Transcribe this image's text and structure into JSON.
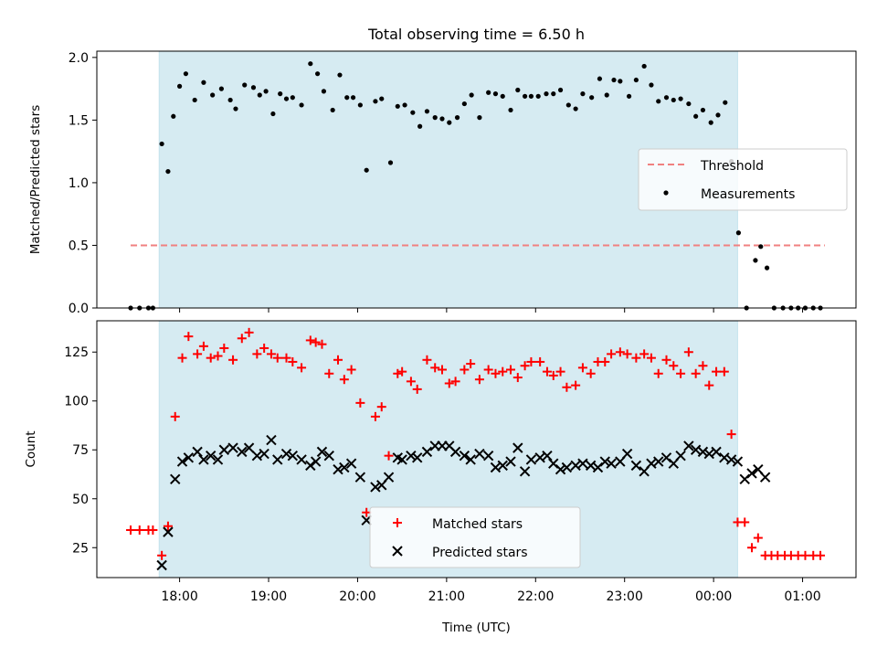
{
  "chart_data": [
    {
      "type": "scatter",
      "title": "Total observing time = 6.50 h",
      "ylabel": "Matched/Predicted stars",
      "xlabel": "",
      "x_units": "hours (UTC, continuous; 24+ = next day)",
      "xlim": [
        17.07,
        25.6
      ],
      "ylim": [
        0,
        2.05
      ],
      "yticks": [
        0.0,
        0.5,
        1.0,
        1.5,
        2.0
      ],
      "ytick_labels": [
        "0.0",
        "0.5",
        "1.0",
        "1.5",
        "2.0"
      ],
      "observing_window": [
        17.77,
        24.27
      ],
      "threshold": {
        "name": "Threshold",
        "value": 0.5,
        "x_range": [
          17.45,
          25.25
        ],
        "color": "#f08080"
      },
      "legend_location": "center right",
      "series": [
        {
          "name": "Measurements",
          "color": "#000000",
          "marker": "dot",
          "x": [
            17.45,
            17.55,
            17.65,
            17.7,
            17.8,
            17.87,
            17.93,
            18.0,
            18.07,
            18.17,
            18.27,
            18.37,
            18.47,
            18.57,
            18.63,
            18.73,
            18.83,
            18.9,
            18.97,
            19.05,
            19.13,
            19.2,
            19.27,
            19.37,
            19.47,
            19.55,
            19.62,
            19.72,
            19.8,
            19.88,
            19.95,
            20.03,
            20.1,
            20.2,
            20.27,
            20.37,
            20.45,
            20.53,
            20.62,
            20.7,
            20.78,
            20.87,
            20.95,
            21.03,
            21.12,
            21.2,
            21.28,
            21.37,
            21.47,
            21.55,
            21.63,
            21.72,
            21.8,
            21.88,
            21.95,
            22.03,
            22.12,
            22.2,
            22.28,
            22.37,
            22.45,
            22.53,
            22.63,
            22.72,
            22.8,
            22.88,
            22.95,
            23.05,
            23.13,
            23.22,
            23.3,
            23.38,
            23.47,
            23.55,
            23.63,
            23.72,
            23.8,
            23.88,
            23.97,
            24.05,
            24.13,
            24.2,
            24.28,
            24.37,
            24.47,
            24.53,
            24.6,
            24.68,
            24.78,
            24.87,
            24.95,
            25.03,
            25.12,
            25.2
          ],
          "y": [
            0,
            0,
            0,
            0,
            1.31,
            1.09,
            1.53,
            1.77,
            1.87,
            1.66,
            1.8,
            1.7,
            1.75,
            1.66,
            1.59,
            1.78,
            1.76,
            1.7,
            1.73,
            1.55,
            1.71,
            1.67,
            1.68,
            1.62,
            1.95,
            1.87,
            1.73,
            1.58,
            1.86,
            1.68,
            1.68,
            1.62,
            1.1,
            1.65,
            1.67,
            1.16,
            1.61,
            1.62,
            1.56,
            1.45,
            1.57,
            1.52,
            1.51,
            1.48,
            1.52,
            1.63,
            1.7,
            1.52,
            1.72,
            1.71,
            1.69,
            1.58,
            1.74,
            1.69,
            1.69,
            1.69,
            1.71,
            1.71,
            1.74,
            1.62,
            1.59,
            1.71,
            1.68,
            1.83,
            1.7,
            1.82,
            1.81,
            1.69,
            1.82,
            1.93,
            1.78,
            1.65,
            1.68,
            1.66,
            1.67,
            1.63,
            1.53,
            1.58,
            1.48,
            1.54,
            1.64,
            1.17,
            0.6,
            0,
            0.38,
            0.49,
            0.32,
            0,
            0,
            0,
            0,
            0,
            0,
            0
          ]
        }
      ]
    },
    {
      "type": "scatter",
      "title": "",
      "ylabel": "Count",
      "xlabel": "Time (UTC)",
      "x_units": "hours (UTC, continuous; 24+ = next day)",
      "xlim": [
        17.07,
        25.6
      ],
      "ylim": [
        9.7,
        141
      ],
      "yticks": [
        25,
        50,
        75,
        100,
        125
      ],
      "ytick_labels": [
        "25",
        "50",
        "75",
        "100",
        "125"
      ],
      "xticks": [
        18,
        19,
        20,
        21,
        22,
        23,
        24,
        25
      ],
      "xtick_labels": [
        "18:00",
        "19:00",
        "20:00",
        "21:00",
        "22:00",
        "23:00",
        "00:00",
        "01:00"
      ],
      "observing_window": [
        17.77,
        24.27
      ],
      "legend_location": "lower center",
      "series": [
        {
          "name": "Matched stars",
          "color": "#ff0000",
          "marker": "plus",
          "x": [
            17.45,
            17.55,
            17.65,
            17.7,
            17.8,
            17.87,
            17.95,
            18.03,
            18.1,
            18.2,
            18.27,
            18.35,
            18.43,
            18.5,
            18.6,
            18.7,
            18.78,
            18.87,
            18.95,
            19.03,
            19.1,
            19.2,
            19.27,
            19.37,
            19.47,
            19.53,
            19.6,
            19.68,
            19.78,
            19.85,
            19.93,
            20.03,
            20.1,
            20.2,
            20.27,
            20.35,
            20.45,
            20.5,
            20.6,
            20.67,
            20.78,
            20.87,
            20.95,
            21.03,
            21.1,
            21.2,
            21.27,
            21.37,
            21.47,
            21.55,
            21.63,
            21.72,
            21.8,
            21.88,
            21.95,
            22.05,
            22.13,
            22.2,
            22.28,
            22.35,
            22.45,
            22.53,
            22.62,
            22.7,
            22.78,
            22.85,
            22.95,
            23.03,
            23.13,
            23.22,
            23.3,
            23.38,
            23.47,
            23.55,
            23.63,
            23.72,
            23.8,
            23.88,
            23.95,
            24.03,
            24.12,
            24.2,
            24.27,
            24.35,
            24.43,
            24.5,
            24.58,
            24.65,
            24.72,
            24.8,
            24.87,
            24.95,
            25.03,
            25.12,
            25.2
          ],
          "y": [
            34,
            34,
            34,
            34,
            21,
            36,
            92,
            122,
            133,
            124,
            128,
            122,
            123,
            127,
            121,
            132,
            135,
            124,
            127,
            124,
            122,
            122,
            120,
            117,
            131,
            130,
            129,
            114,
            121,
            111,
            116,
            99,
            43,
            92,
            97,
            72,
            114,
            115,
            110,
            106,
            121,
            117,
            116,
            109,
            110,
            116,
            119,
            111,
            116,
            114,
            115,
            116,
            112,
            118,
            120,
            120,
            115,
            113,
            115,
            107,
            108,
            117,
            114,
            120,
            120,
            124,
            125,
            124,
            122,
            124,
            122,
            114,
            121,
            118,
            114,
            125,
            114,
            118,
            108,
            115,
            115,
            83,
            38,
            38,
            25,
            30,
            21,
            21,
            21,
            21,
            21,
            21,
            21,
            21,
            21
          ]
        },
        {
          "name": "Predicted stars",
          "color": "#000000",
          "marker": "x",
          "x": [
            17.8,
            17.87,
            17.95,
            18.03,
            18.1,
            18.2,
            18.27,
            18.35,
            18.43,
            18.5,
            18.6,
            18.7,
            18.78,
            18.87,
            18.95,
            19.03,
            19.1,
            19.2,
            19.27,
            19.37,
            19.47,
            19.53,
            19.6,
            19.68,
            19.78,
            19.85,
            19.93,
            20.03,
            20.1,
            20.2,
            20.27,
            20.35,
            20.45,
            20.5,
            20.6,
            20.67,
            20.78,
            20.87,
            20.95,
            21.03,
            21.1,
            21.2,
            21.27,
            21.37,
            21.47,
            21.55,
            21.63,
            21.72,
            21.8,
            21.88,
            21.95,
            22.05,
            22.13,
            22.2,
            22.28,
            22.35,
            22.45,
            22.53,
            22.62,
            22.7,
            22.78,
            22.85,
            22.95,
            23.03,
            23.13,
            23.22,
            23.3,
            23.38,
            23.47,
            23.55,
            23.63,
            23.72,
            23.8,
            23.88,
            23.95,
            24.03,
            24.12,
            24.2,
            24.27,
            24.35,
            24.43,
            24.5,
            24.58
          ],
          "y": [
            16,
            33,
            60,
            69,
            71,
            74,
            70,
            72,
            70,
            75,
            76,
            74,
            76,
            72,
            73,
            80,
            70,
            73,
            72,
            70,
            67,
            69,
            74,
            72,
            65,
            66,
            68,
            61,
            39,
            56,
            57,
            61,
            71,
            70,
            72,
            71,
            74,
            77,
            77,
            77,
            74,
            72,
            70,
            73,
            72,
            66,
            67,
            69,
            76,
            64,
            70,
            71,
            72,
            68,
            65,
            66,
            67,
            68,
            67,
            66,
            69,
            68,
            69,
            73,
            67,
            64,
            68,
            69,
            71,
            68,
            72,
            77,
            75,
            74,
            73,
            74,
            71,
            70,
            69,
            60,
            63,
            65,
            61
          ]
        }
      ]
    }
  ]
}
